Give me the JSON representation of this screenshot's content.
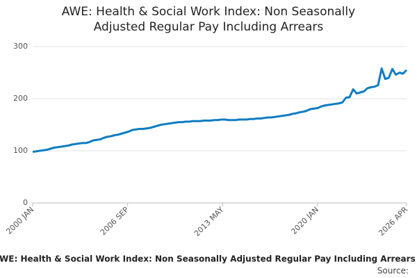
{
  "chart_data": {
    "type": "line",
    "title": "AWE: Health & Social Work Index: Non Seasonally Adjusted Regular Pay Including Arrears",
    "footer_title": "AWE: Health & Social Work Index: Non Seasonally Adjusted Regular Pay Including Arrears",
    "source": "Source:",
    "x": [
      "2000 JAN",
      "2000 APR",
      "2000 JUL",
      "2000 OCT",
      "2001 JAN",
      "2001 APR",
      "2001 JUL",
      "2001 OCT",
      "2002 JAN",
      "2002 APR",
      "2002 JUL",
      "2002 OCT",
      "2003 JAN",
      "2003 APR",
      "2003 JUL",
      "2003 OCT",
      "2004 JAN",
      "2004 APR",
      "2004 JUL",
      "2004 OCT",
      "2005 JAN",
      "2005 APR",
      "2005 JUL",
      "2005 OCT",
      "2006 JAN",
      "2006 APR",
      "2006 JUL",
      "2006 OCT",
      "2007 JAN",
      "2007 APR",
      "2007 JUL",
      "2007 OCT",
      "2008 JAN",
      "2008 APR",
      "2008 JUL",
      "2008 OCT",
      "2009 JAN",
      "2009 APR",
      "2009 JUL",
      "2009 OCT",
      "2010 JAN",
      "2010 APR",
      "2010 JUL",
      "2010 OCT",
      "2011 JAN",
      "2011 APR",
      "2011 JUL",
      "2011 OCT",
      "2012 JAN",
      "2012 APR",
      "2012 JUL",
      "2012 OCT",
      "2013 JAN",
      "2013 APR",
      "2013 JUL",
      "2013 OCT",
      "2014 JAN",
      "2014 APR",
      "2014 JUL",
      "2014 OCT",
      "2015 JAN",
      "2015 APR",
      "2015 JUL",
      "2015 OCT",
      "2016 JAN",
      "2016 APR",
      "2016 JUL",
      "2016 OCT",
      "2017 JAN",
      "2017 APR",
      "2017 JUL",
      "2017 OCT",
      "2018 JAN",
      "2018 APR",
      "2018 JUL",
      "2018 OCT",
      "2019 JAN",
      "2019 APR",
      "2019 JUL",
      "2019 OCT",
      "2020 JAN",
      "2020 APR",
      "2020 JUL",
      "2020 OCT",
      "2021 JAN",
      "2021 APR",
      "2021 JUL",
      "2021 OCT",
      "2022 JAN",
      "2022 APR",
      "2022 JUL",
      "2022 OCT",
      "2023 JAN",
      "2023 APR",
      "2023 JUL",
      "2023 OCT",
      "2024 JAN",
      "2024 APR",
      "2024 JUL",
      "2024 OCT",
      "2025 JAN",
      "2025 APR",
      "2025 JUL",
      "2025 OCT",
      "2026 JAN",
      "2026 APR"
    ],
    "series": [
      {
        "name": "AWE: Health & Social Work Index",
        "color": "#0f7dc2",
        "values": [
          98,
          99,
          100,
          101,
          102,
          104,
          106,
          107,
          108,
          109,
          110,
          112,
          113,
          114,
          115,
          115,
          117,
          120,
          121,
          122,
          125,
          127,
          128,
          130,
          131,
          133,
          135,
          137,
          140,
          141,
          142,
          142,
          143,
          144,
          146,
          148,
          150,
          151,
          152,
          153,
          154,
          155,
          155,
          156,
          156,
          157,
          157,
          157,
          158,
          158,
          158,
          159,
          159,
          160,
          160,
          159,
          159,
          159,
          160,
          160,
          160,
          161,
          161,
          162,
          162,
          163,
          164,
          164,
          165,
          166,
          167,
          168,
          169,
          171,
          172,
          174,
          175,
          177,
          180,
          181,
          182,
          185,
          187,
          188,
          189,
          190,
          191,
          193,
          202,
          203,
          218,
          210,
          212,
          214,
          220,
          222,
          223,
          226,
          258,
          238,
          240,
          257,
          246,
          250,
          248,
          255
        ]
      }
    ],
    "xlim": [
      "2000 JAN",
      "2026 APR"
    ],
    "xticks": [
      "2000 JAN",
      "2006 SEP",
      "2013 MAY",
      "2020 JAN",
      "2026 APR"
    ],
    "ylim": [
      0,
      300
    ],
    "yticks": [
      0,
      100,
      200,
      300
    ],
    "grid": true
  }
}
